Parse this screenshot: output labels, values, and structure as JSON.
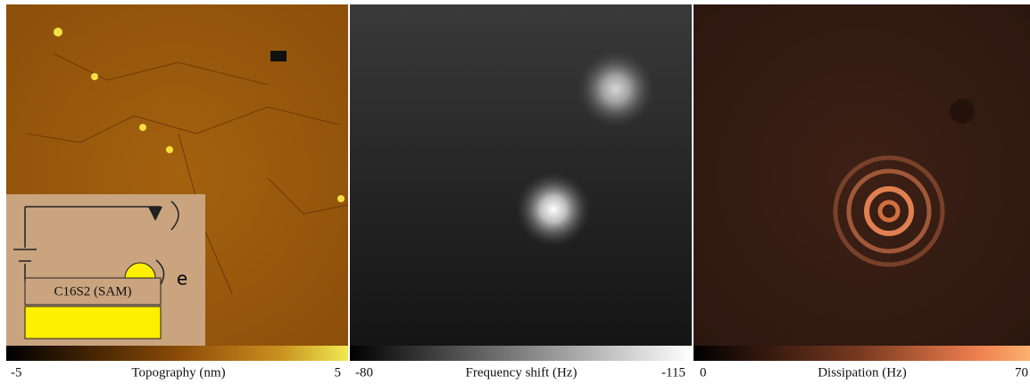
{
  "panels": [
    {
      "colorbar": {
        "min": -5,
        "label": "Topography (nm)",
        "max": 5
      }
    },
    {
      "colorbar": {
        "min": -80,
        "label": "Frequency shift (Hz)",
        "max": -115
      }
    },
    {
      "colorbar": {
        "min": 0,
        "label": "Dissipation (Hz)",
        "max": 70
      }
    }
  ],
  "inset": {
    "layer_label": "C16S2 (SAM)",
    "electron_label": "e"
  }
}
